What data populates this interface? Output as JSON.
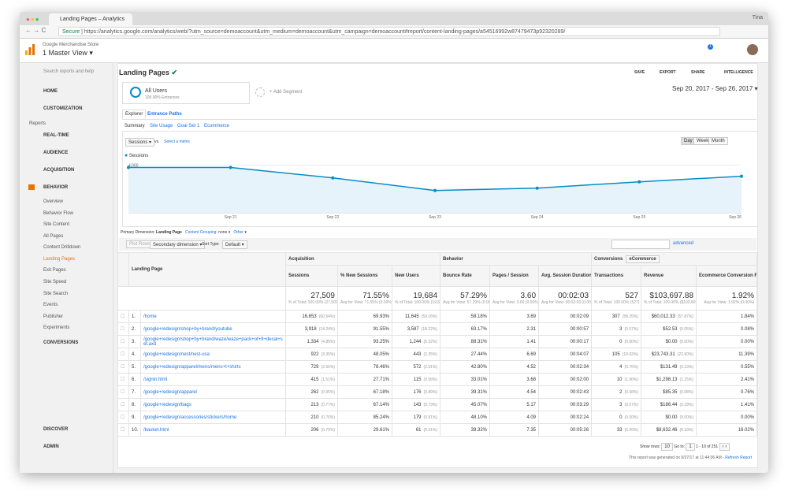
{
  "browser": {
    "tab_title": "Landing Pages – Analytics",
    "secure": "Secure",
    "url": "https://analytics.google.com/analytics/web/?utm_source=demoaccount&utm_medium=demoaccount&utm_campaign=demoaccount#report/content-landing-pages/a54516992w87479473p92320289/",
    "user": "Tina"
  },
  "header": {
    "account": "Google Merchandise Store",
    "view": "1 Master View",
    "notifications": "1"
  },
  "sidebar": {
    "search": "Search reports and help",
    "home": "HOME",
    "customization": "CUSTOMIZATION",
    "reports": "Reports",
    "realtime": "REAL-TIME",
    "audience": "AUDIENCE",
    "acquisition": "ACQUISITION",
    "behavior": "BEHAVIOR",
    "overview": "Overview",
    "behavior_flow": "Behavior Flow",
    "site_content": "Site Content",
    "all_pages": "All Pages",
    "content_drilldown": "Content Drilldown",
    "landing_pages": "Landing Pages",
    "exit_pages": "Exit Pages",
    "site_speed": "Site Speed",
    "site_search": "Site Search",
    "events": "Events",
    "publisher": "Publisher",
    "experiments": "Experiments",
    "conversions": "CONVERSIONS",
    "discover": "DISCOVER",
    "admin": "ADMIN"
  },
  "report": {
    "title": "Landing Pages",
    "save": "SAVE",
    "export": "EXPORT",
    "share": "SHARE",
    "intelligence": "INTELLIGENCE",
    "date_range": "Sep 20, 2017 - Sep 26, 2017",
    "segment": "All Users",
    "segment_sub": "100.00% Entrances",
    "add_segment": "+ Add Segment",
    "tabs": [
      "Explorer",
      "Entrance Paths"
    ],
    "subtabs": [
      "Summary",
      "Site Usage",
      "Goal Set 1",
      "Ecommerce"
    ],
    "metric": "Sessions",
    "vs": "vs.",
    "select_metric": "Select a metric",
    "periods": [
      "Day",
      "Week",
      "Month"
    ]
  },
  "chart_data": {
    "type": "line",
    "categories": [
      null,
      "Sep 21",
      "Sep 22",
      "Sep 23",
      "Sep 24",
      "Sep 25",
      "Sep 26"
    ],
    "series": [
      {
        "name": "Sessions",
        "color": "#058dc7",
        "values": [
          3800,
          3800,
          2930,
          1870,
          2070,
          2600,
          3070
        ]
      }
    ],
    "ylim": [
      0,
      4300
    ],
    "yticks": [
      {
        "value": 2000,
        "label": "2,000"
      },
      {
        "value": 4000,
        "label": "4,000"
      }
    ]
  },
  "controls": {
    "primary_dimension": "Primary Dimension:",
    "landing_page": "Landing Page",
    "content_grouping": "Content Grouping:",
    "none": "none",
    "other": "Other",
    "plot_rows": "Plot Rows",
    "secondary_dimension": "Secondary dimension",
    "sort_type": "Sort Type:",
    "default": "Default",
    "advanced": "advanced"
  },
  "table": {
    "landing_page": "Landing Page",
    "groups": {
      "acquisition": "Acquisition",
      "behavior": "Behavior",
      "conversions": "Conversions",
      "ecommerce": "eCommerce"
    },
    "columns": [
      "Sessions",
      "% New Sessions",
      "New Users",
      "Bounce Rate",
      "Pages / Session",
      "Avg. Session Duration",
      "Transactions",
      "Revenue",
      "Ecommerce Conversion Rate"
    ],
    "totals": [
      {
        "value": "27,509",
        "sub": "% of Total: 100.00% (27,509)"
      },
      {
        "value": "71.55%",
        "sub": "Avg for View: 71.55% (0.00%)"
      },
      {
        "value": "19,684",
        "sub": "% of Total: 100.00% (19,684)"
      },
      {
        "value": "57.29%",
        "sub": "Avg for View: 57.29% (0.00%)"
      },
      {
        "value": "3.60",
        "sub": "Avg for View: 3.60 (0.00%)"
      },
      {
        "value": "00:02:03",
        "sub": "Avg for View: 00:02:03 (0.00%)"
      },
      {
        "value": "527",
        "sub": "% of Total: 100.00% (527)"
      },
      {
        "value": "$103,697.88",
        "sub": "% of Total: 100.00% ($103,697.88)"
      },
      {
        "value": "1.92%",
        "sub": "Avg for View: 1.92% (0.00%)"
      }
    ],
    "rows": [
      [
        "1.",
        "/home",
        "16,653",
        "(60.54%)",
        "69.93%",
        "11,645",
        "(59.16%)",
        "58.18%",
        "3.69",
        "00:02:09",
        "307",
        "(58.25%)",
        "$60,012.33",
        "(57.87%)",
        "1.84%"
      ],
      [
        "2.",
        "/google+redesign/shop+by+brand/youtube",
        "3,918",
        "(14.24%)",
        "91.55%",
        "3,587",
        "(18.22%)",
        "63.17%",
        "2.31",
        "00:00:57",
        "3",
        "(0.57%)",
        "$52.53",
        "(0.05%)",
        "0.08%"
      ],
      [
        "3.",
        "/google+redesign/shop+by+brand/waze/waze+pack+of+9+decal+set.axd",
        "1,334",
        "(4.85%)",
        "93.25%",
        "1,244",
        "(6.32%)",
        "88.31%",
        "1.41",
        "00:00:17",
        "0",
        "(0.00%)",
        "$0.00",
        "(0.00%)",
        "0.00%"
      ],
      [
        "4.",
        "/google+redesign/nest/nest-usa",
        "922",
        "(3.35%)",
        "48.05%",
        "443",
        "(2.25%)",
        "27.44%",
        "6.69",
        "00:04:07",
        "105",
        "(19.92%)",
        "$23,743.31",
        "(22.90%)",
        "11.39%"
      ],
      [
        "5.",
        "/google+redesign/apparel/mens/mens+t+shirts",
        "729",
        "(2.65%)",
        "78.46%",
        "572",
        "(2.91%)",
        "42.80%",
        "4.52",
        "00:02:34",
        "4",
        "(0.76%)",
        "$131.49",
        "(0.13%)",
        "0.55%"
      ],
      [
        "6.",
        "/signin.html",
        "415",
        "(1.51%)",
        "27.71%",
        "115",
        "(0.58%)",
        "33.01%",
        "3.68",
        "00:02:00",
        "10",
        "(1.90%)",
        "$1,298.13",
        "(1.25%)",
        "2.41%"
      ],
      [
        "7.",
        "/google+redesign/apparel",
        "262",
        "(0.95%)",
        "67.18%",
        "176",
        "(0.89%)",
        "39.31%",
        "4.54",
        "00:02:43",
        "2",
        "(0.38%)",
        "$85.35",
        "(0.08%)",
        "0.76%"
      ],
      [
        "8.",
        "/google+redesign/bags",
        "213",
        "(0.77%)",
        "67.14%",
        "143",
        "(0.73%)",
        "45.07%",
        "5.17",
        "00:03:29",
        "3",
        "(0.57%)",
        "$186.44",
        "(0.18%)",
        "1.41%"
      ],
      [
        "9.",
        "/google+redesign/accessories/stickers/home",
        "210",
        "(0.76%)",
        "85.24%",
        "179",
        "(0.91%)",
        "48.10%",
        "4.09",
        "00:02:24",
        "0",
        "(0.00%)",
        "$0.00",
        "(0.00%)",
        "0.00%"
      ],
      [
        "10.",
        "/basket.html",
        "206",
        "(0.75%)",
        "29.61%",
        "61",
        "(0.31%)",
        "39.32%",
        "7.35",
        "00:05:26",
        "33",
        "(6.26%)",
        "$8,632.46",
        "(8.33%)",
        "16.02%"
      ]
    ]
  },
  "pagination": {
    "show_rows": "Show rows:",
    "rows": "10",
    "go_to": "Go to:",
    "page": "1",
    "range": "1 - 10 of 251"
  },
  "footer": {
    "generated": "This report was generated on 9/27/17 at 11:44:06 AM - ",
    "refresh": "Refresh Report"
  }
}
